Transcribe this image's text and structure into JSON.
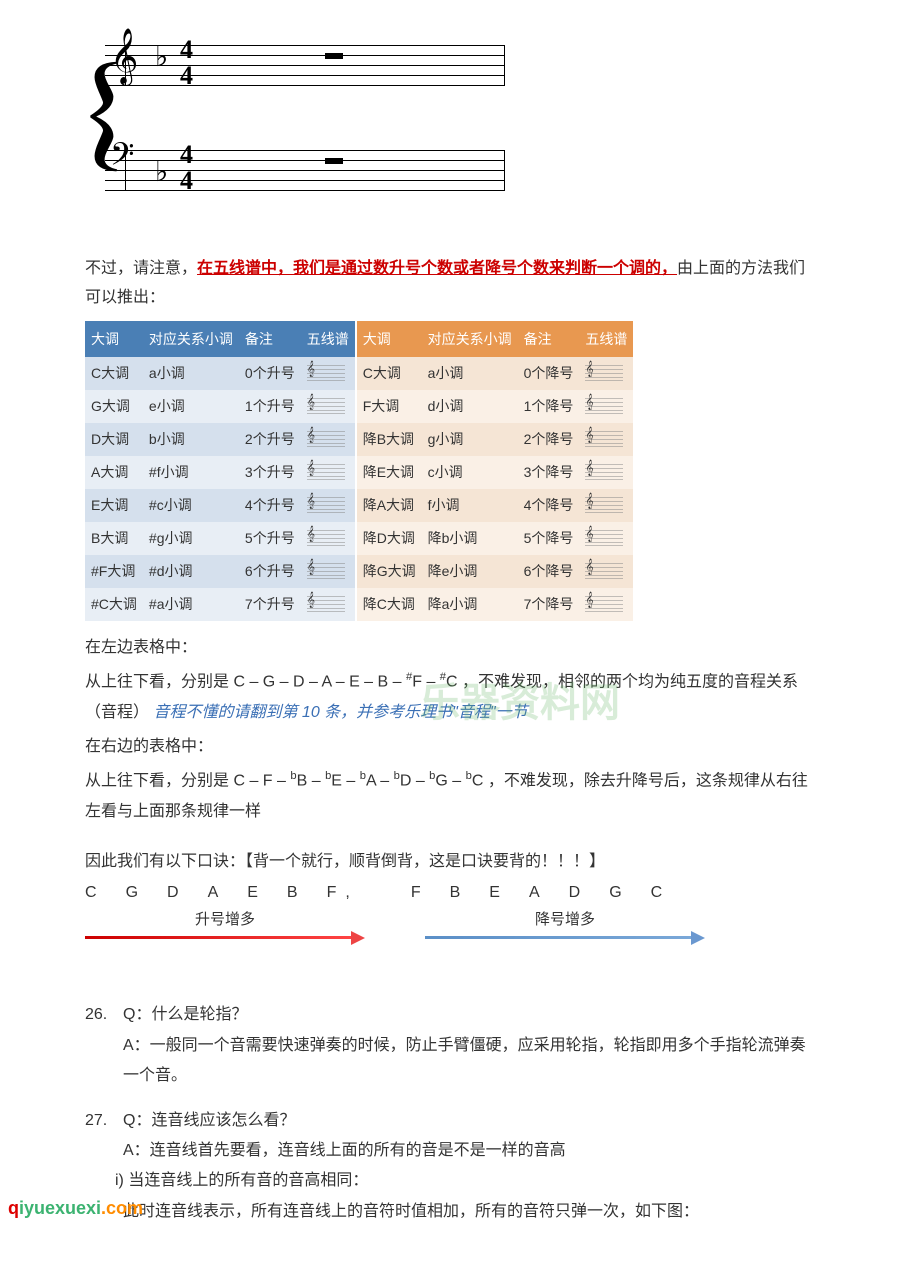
{
  "notation": {
    "time_top": "4",
    "time_bottom": "4"
  },
  "intro": {
    "prefix": "不过，请注意，",
    "highlight": "在五线谱中，我们是通过数升号个数或者降号个数来判断一个调的，",
    "suffix": "由上面的方法我们可以推出："
  },
  "table_sharps": {
    "headers": [
      "大调",
      "对应关系小调",
      "备注",
      "五线谱"
    ],
    "rows": [
      [
        "C大调",
        "a小调",
        "0个升号"
      ],
      [
        "G大调",
        "e小调",
        "1个升号"
      ],
      [
        "D大调",
        "b小调",
        "2个升号"
      ],
      [
        "A大调",
        "#f小调",
        "3个升号"
      ],
      [
        "E大调",
        "#c小调",
        "4个升号"
      ],
      [
        "B大调",
        "#g小调",
        "5个升号"
      ],
      [
        "#F大调",
        "#d小调",
        "6个升号"
      ],
      [
        "#C大调",
        "#a小调",
        "7个升号"
      ]
    ]
  },
  "table_flats": {
    "headers": [
      "大调",
      "对应关系小调",
      "备注",
      "五线谱"
    ],
    "rows": [
      [
        "C大调",
        "a小调",
        "0个降号"
      ],
      [
        "F大调",
        "d小调",
        "1个降号"
      ],
      [
        "降B大调",
        "g小调",
        "2个降号"
      ],
      [
        "降E大调",
        "c小调",
        "3个降号"
      ],
      [
        "降A大调",
        "f小调",
        "4个降号"
      ],
      [
        "降D大调",
        "降b小调",
        "5个降号"
      ],
      [
        "降G大调",
        "降e小调",
        "6个降号"
      ],
      [
        "降C大调",
        "降a小调",
        "7个降号"
      ]
    ]
  },
  "explain": {
    "l1": "在左边表格中：",
    "l2a": "从上往下看，分别是 C – G – D – A – E – B – ",
    "l2b": "F – ",
    "l2c": "C ，不难发现，相邻的两个均为纯五度的音程关系（音程）",
    "l2_blue": "音程不懂的请翻到第 10 条，并参考乐理书\"音程\"一节",
    "l3": "在右边的表格中：",
    "l4a": "从上往下看，分别是 C – F – ",
    "l4b": "B – ",
    "l4c": "E – ",
    "l4d": "A – ",
    "l4e": "D – ",
    "l4f": "G – ",
    "l4g": "C ，不难发现，除去升降号后，这条规律从右往左看与上面那条规律一样"
  },
  "mnemonic": {
    "intro": "因此我们有以下口诀：【背一个就行，顺背倒背，这是口诀要背的！！！】",
    "left_letters": [
      "C",
      "G",
      "D",
      "A",
      "E",
      "B",
      "F"
    ],
    "comma": ",",
    "right_letters": [
      "F",
      "B",
      "E",
      "A",
      "D",
      "G",
      "C"
    ],
    "label_left": "升号增多",
    "label_right": "降号增多"
  },
  "qa": [
    {
      "num": "26.",
      "q": "Q：什么是轮指？",
      "a": "A：一般同一个音需要快速弹奏的时候，防止手臂僵硬，应采用轮指，轮指即用多个手指轮流弹奏一个音。"
    },
    {
      "num": "27.",
      "q": "Q：连音线应该怎么看？",
      "a": "A：连音线首先要看，连音线上面的所有的音是不是一样的音高",
      "sub_i": "i)   当连音线上的所有音的音高相同：",
      "sub_body": "此时连音线表示，所有连音线上的音符时值相加，所有的音符只弹一次，如下图："
    }
  ],
  "watermarks": {
    "site1": "乐器资料网",
    "logo_q": "q",
    "logo_rest": "iyuexuexi",
    "logo_com": ".com"
  },
  "colors": {
    "red_text": "#c00",
    "blue_text": "#3a6fb5",
    "sharps_header": "#4a7fb5",
    "flats_header": "#e89850",
    "arrow_red": "#e44",
    "arrow_blue": "#6a98d0"
  }
}
